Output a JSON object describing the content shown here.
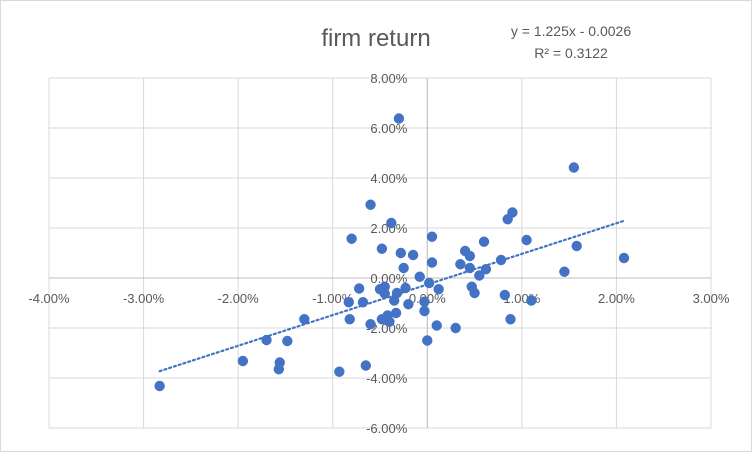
{
  "chart_data": {
    "type": "scatter",
    "title": "firm return",
    "xlabel": "",
    "ylabel": "",
    "xlim": [
      -0.04,
      0.03
    ],
    "ylim": [
      -0.06,
      0.08
    ],
    "x_ticks": [
      -0.04,
      -0.03,
      -0.02,
      -0.01,
      0.0,
      0.01,
      0.02,
      0.03
    ],
    "y_ticks": [
      -0.06,
      -0.04,
      -0.02,
      0.0,
      0.02,
      0.04,
      0.06,
      0.08
    ],
    "x_tick_labels": [
      "-4.00%",
      "-3.00%",
      "-2.00%",
      "-1.00%",
      "0.00%",
      "1.00%",
      "2.00%",
      "3.00%"
    ],
    "y_tick_labels": [
      "-6.00%",
      "-4.00%",
      "-2.00%",
      "0.00%",
      "2.00%",
      "4.00%",
      "6.00%",
      "8.00%"
    ],
    "grid": "horizontal",
    "series": [
      {
        "points": [
          [
            -0.0283,
            -0.0432
          ],
          [
            -0.0195,
            -0.0332
          ],
          [
            -0.017,
            -0.0248
          ],
          [
            -0.0157,
            -0.0365
          ],
          [
            -0.0156,
            -0.0338
          ],
          [
            -0.0148,
            -0.0252
          ],
          [
            -0.013,
            -0.0165
          ],
          [
            -0.0093,
            -0.0375
          ],
          [
            -0.0083,
            -0.0097
          ],
          [
            -0.0082,
            -0.0165
          ],
          [
            -0.008,
            0.0157
          ],
          [
            -0.0072,
            -0.0042
          ],
          [
            -0.0068,
            -0.0097
          ],
          [
            -0.0065,
            -0.035
          ],
          [
            -0.006,
            0.0293
          ],
          [
            -0.006,
            -0.0185
          ],
          [
            -0.005,
            -0.0045
          ],
          [
            -0.0048,
            0.0117
          ],
          [
            -0.0048,
            -0.0165
          ],
          [
            -0.0045,
            -0.0035
          ],
          [
            -0.0045,
            -0.0062
          ],
          [
            -0.0042,
            -0.015
          ],
          [
            -0.004,
            -0.0175
          ],
          [
            -0.0038,
            0.022
          ],
          [
            -0.0035,
            -0.009
          ],
          [
            -0.0033,
            -0.014
          ],
          [
            -0.0032,
            -0.006
          ],
          [
            -0.003,
            0.0638
          ],
          [
            -0.0028,
            0.01
          ],
          [
            -0.0025,
            0.004
          ],
          [
            -0.0023,
            -0.004
          ],
          [
            -0.002,
            -0.0105
          ],
          [
            -0.0015,
            0.0092
          ],
          [
            -0.0008,
            0.0005
          ],
          [
            -0.0003,
            -0.0095
          ],
          [
            -0.0003,
            -0.0132
          ],
          [
            0.0,
            -0.025
          ],
          [
            0.0002,
            -0.002
          ],
          [
            0.0005,
            0.0165
          ],
          [
            0.0005,
            0.0062
          ],
          [
            0.001,
            -0.019
          ],
          [
            0.0012,
            -0.0045
          ],
          [
            0.003,
            -0.02
          ],
          [
            0.0035,
            0.0055
          ],
          [
            0.004,
            0.0108
          ],
          [
            0.0045,
            0.0088
          ],
          [
            0.0045,
            0.004
          ],
          [
            0.0047,
            -0.0035
          ],
          [
            0.005,
            -0.006
          ],
          [
            0.0055,
            0.001
          ],
          [
            0.006,
            0.0145
          ],
          [
            0.0062,
            0.0035
          ],
          [
            0.0078,
            0.0072
          ],
          [
            0.0082,
            -0.0068
          ],
          [
            0.0085,
            0.0235
          ],
          [
            0.0088,
            -0.0165
          ],
          [
            0.009,
            0.0262
          ],
          [
            0.0105,
            0.0152
          ],
          [
            0.011,
            -0.009
          ],
          [
            0.0145,
            0.0025
          ],
          [
            0.0155,
            0.0442
          ],
          [
            0.0158,
            0.0128
          ],
          [
            0.0208,
            0.008
          ]
        ],
        "color": "#4472c4"
      }
    ],
    "trendline": {
      "type": "linear",
      "slope": 1.225,
      "intercept": -0.0026,
      "x_range": [
        -0.0283,
        0.0208
      ],
      "color": "#4472c4",
      "style": "dotted"
    },
    "annotations": {
      "equation": "y = 1.225x - 0.0026",
      "r_squared": "R² = 0.3122"
    }
  }
}
